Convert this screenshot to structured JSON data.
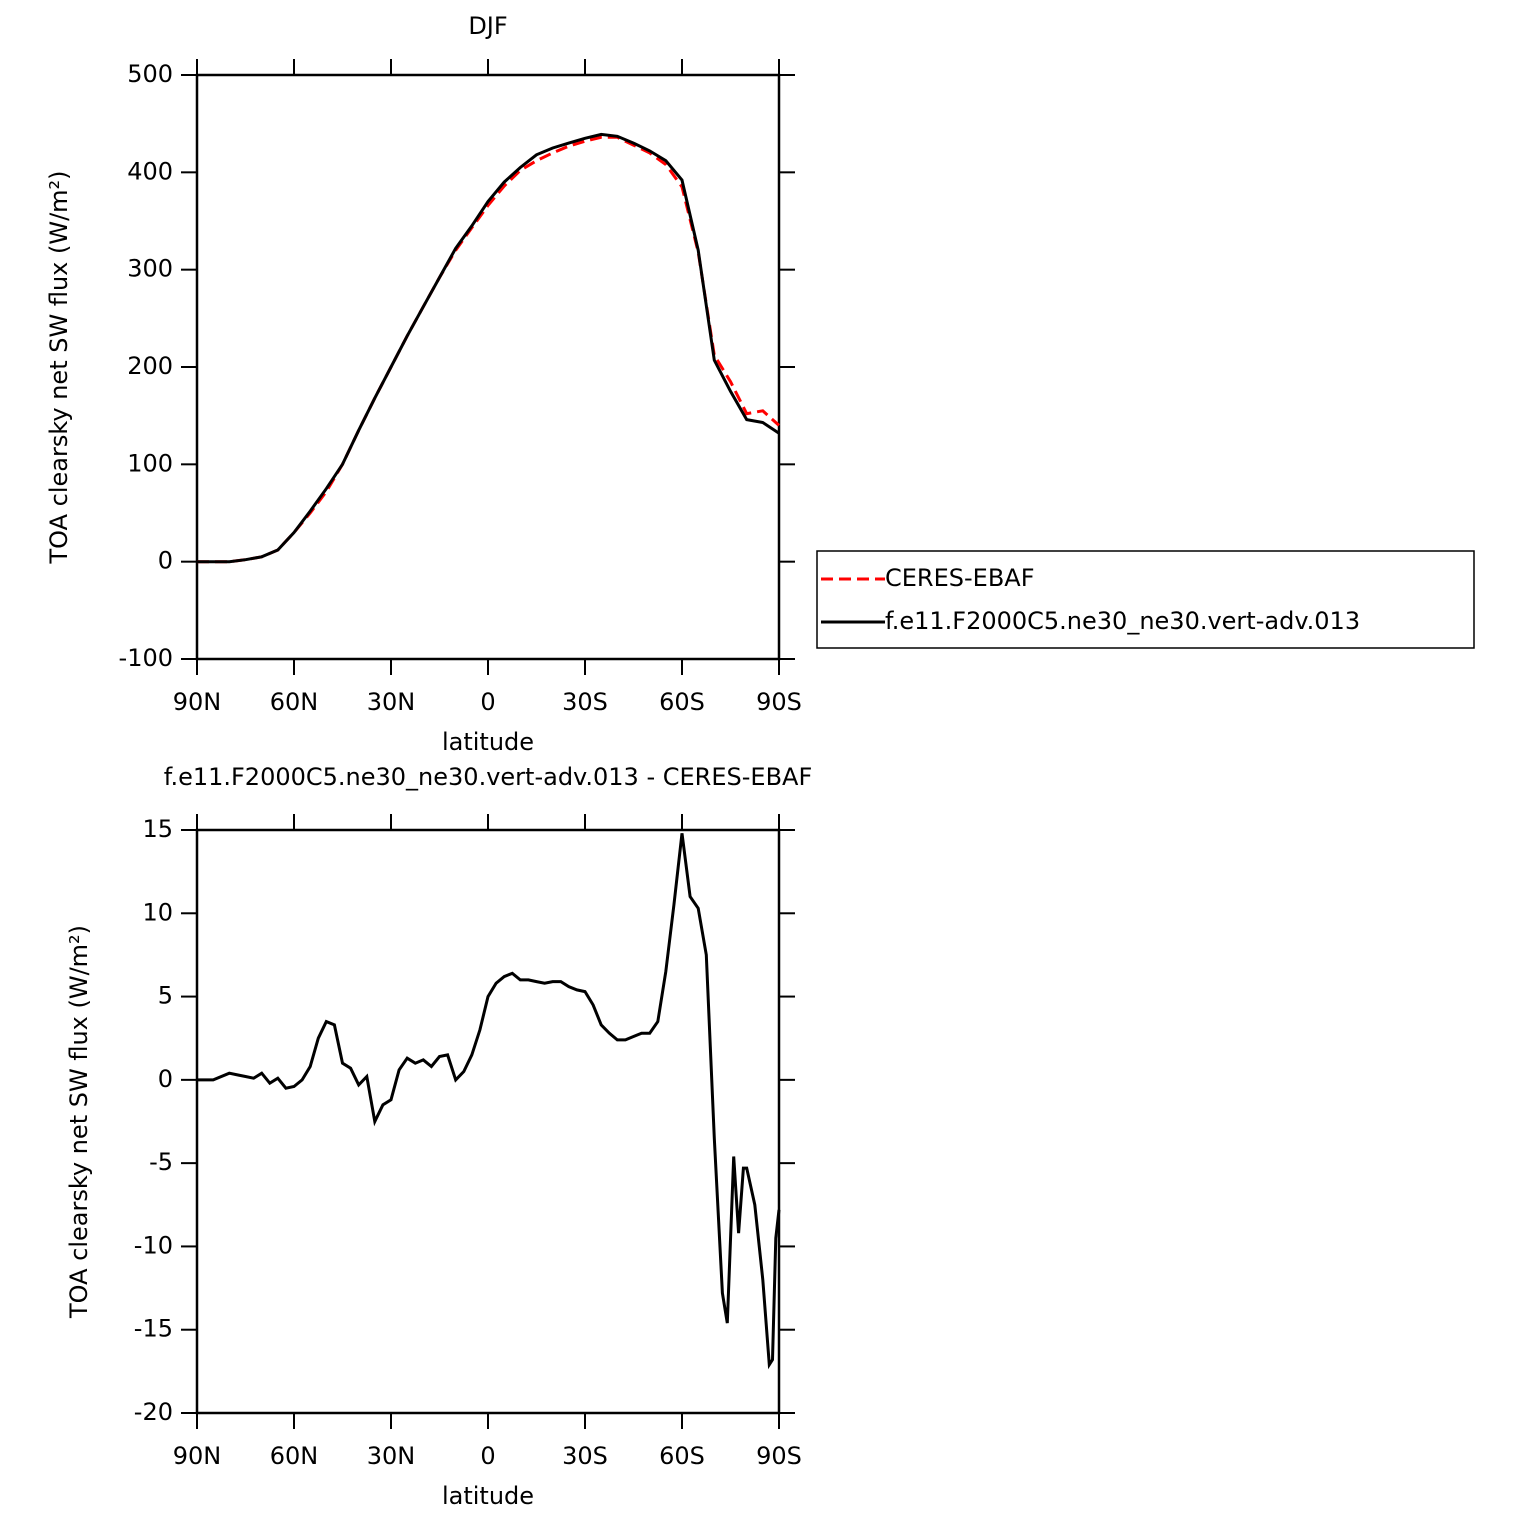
{
  "chart_data": [
    {
      "type": "line",
      "title": "DJF",
      "xlabel": "latitude",
      "ylabel": "TOA clearsky net SW flux (W/m²)",
      "xlim": [
        90,
        -90
      ],
      "xticks": [
        {
          "value": 90,
          "label": "90N"
        },
        {
          "value": 60,
          "label": "60N"
        },
        {
          "value": 30,
          "label": "30N"
        },
        0,
        {
          "value": -30,
          "label": "30S"
        },
        {
          "value": -60,
          "label": "60S"
        },
        {
          "value": -90,
          "label": "90S"
        }
      ],
      "ylim": [
        -100,
        500
      ],
      "yticks": [
        -100,
        0,
        100,
        200,
        300,
        400,
        500
      ],
      "x": [
        90,
        85,
        80,
        75,
        70,
        65,
        60,
        55,
        50,
        45,
        40,
        35,
        30,
        25,
        20,
        15,
        10,
        5,
        0,
        -5,
        -10,
        -15,
        -20,
        -25,
        -30,
        -35,
        -40,
        -45,
        -50,
        -55,
        -60,
        -65,
        -70,
        -75,
        -80,
        -85,
        -90
      ],
      "legend": "outside right",
      "series": [
        {
          "name": "CERES-EBAF",
          "color": "#ff0000",
          "dash": true,
          "values": [
            0,
            0,
            0,
            2,
            5,
            12,
            30,
            50,
            72,
            100,
            135,
            168,
            200,
            232,
            262,
            292,
            320,
            343,
            366,
            386,
            402,
            412,
            420,
            427,
            432,
            436,
            436,
            428,
            420,
            408,
            385,
            318,
            212,
            185,
            152,
            155,
            140
          ]
        },
        {
          "name": "f.e11.F2000C5.ne30_ne30.vert-adv.013",
          "color": "#000000",
          "dash": false,
          "values": [
            0,
            0,
            0,
            2,
            5,
            12,
            30,
            52,
            75,
            100,
            135,
            168,
            200,
            232,
            262,
            292,
            322,
            345,
            370,
            390,
            405,
            418,
            425,
            430,
            435,
            439,
            437,
            430,
            422,
            412,
            392,
            320,
            207,
            175,
            146,
            143,
            132
          ]
        }
      ]
    },
    {
      "type": "line",
      "title": "f.e11.F2000C5.ne30_ne30.vert-adv.013 - CERES-EBAF",
      "xlabel": "latitude",
      "ylabel": "TOA clearsky net SW flux (W/m²)",
      "xlim": [
        90,
        -90
      ],
      "xticks": [
        {
          "value": 90,
          "label": "90N"
        },
        {
          "value": 60,
          "label": "60N"
        },
        {
          "value": 30,
          "label": "30N"
        },
        0,
        {
          "value": -30,
          "label": "30S"
        },
        {
          "value": -60,
          "label": "60S"
        },
        {
          "value": -90,
          "label": "90S"
        }
      ],
      "ylim": [
        -20,
        15
      ],
      "yticks": [
        -20,
        -15,
        -10,
        -5,
        0,
        5,
        10,
        15
      ],
      "x": [
        90,
        85,
        80,
        77.5,
        75,
        72.5,
        70,
        67.5,
        65,
        62.5,
        60,
        57.5,
        55,
        52.5,
        50,
        47.5,
        45,
        42.5,
        40,
        37.5,
        35,
        32.5,
        30,
        27.5,
        25,
        22.5,
        20,
        17.5,
        15,
        12.5,
        10,
        7.5,
        5,
        2.5,
        0,
        -2.5,
        -5,
        -7.5,
        -10,
        -12.5,
        -15,
        -17.5,
        -20,
        -22.5,
        -25,
        -27.5,
        -30,
        -32.5,
        -35,
        -37.5,
        -40,
        -42.5,
        -45,
        -47.5,
        -50,
        -52.5,
        -55,
        -57.5,
        -60,
        -62.5,
        -65,
        -67.5,
        -70,
        -72.5,
        -74,
        -76,
        -77.5,
        -79,
        -80,
        -82.5,
        -85,
        -87,
        -88,
        -89,
        -90
      ],
      "series": [
        {
          "name": "f.e11.F2000C5.ne30_ne30.vert-adv.013 - CERES-EBAF",
          "color": "#000000",
          "dash": false,
          "values": [
            0,
            0,
            0.4,
            0.3,
            0.2,
            0.1,
            0.4,
            -0.2,
            0.1,
            -0.5,
            -0.4,
            0,
            0.8,
            2.5,
            3.5,
            3.3,
            1.0,
            0.7,
            -0.3,
            0.2,
            -2.5,
            -1.5,
            -1.2,
            0.6,
            1.3,
            1.0,
            1.2,
            0.8,
            1.4,
            1.5,
            0,
            0.5,
            1.5,
            3.0,
            5.0,
            5.8,
            6.2,
            6.4,
            6.0,
            6.0,
            5.9,
            5.8,
            5.9,
            5.9,
            5.6,
            5.4,
            5.3,
            4.5,
            3.3,
            2.8,
            2.4,
            2.4,
            2.6,
            2.8,
            2.8,
            3.5,
            6.5,
            10.5,
            14.8,
            11.0,
            10.3,
            7.5,
            -3.5,
            -12.8,
            -14.6,
            -4.6,
            -9.2,
            -5.3,
            -5.3,
            -7.5,
            -12,
            -17.1,
            -16.8,
            -9.5,
            -7.8
          ]
        }
      ]
    }
  ]
}
